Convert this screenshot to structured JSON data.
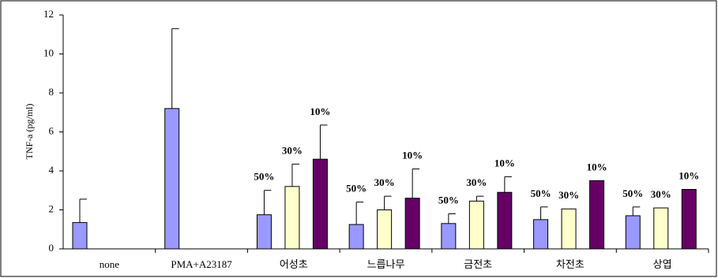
{
  "chart_data": {
    "type": "bar",
    "y_label": "TNF-a (pg/ml)",
    "categories": [
      "none",
      "PMA+A23187",
      "어성초",
      "느릅나무",
      "금전초",
      "차전초",
      "상엽"
    ],
    "series": [
      {
        "name": "50%",
        "color": "#9999ff",
        "values": [
          1.35,
          7.2,
          1.75,
          1.25,
          1.3,
          1.5,
          1.7
        ],
        "errors": [
          1.2,
          4.1,
          1.25,
          1.15,
          0.5,
          0.65,
          0.45
        ]
      },
      {
        "name": "30%",
        "color": "#ffffcc",
        "values": [
          null,
          null,
          3.2,
          2.0,
          2.45,
          2.05,
          2.1
        ],
        "errors": [
          null,
          null,
          1.15,
          0.7,
          0.25,
          null,
          null
        ]
      },
      {
        "name": "10%",
        "color": "#660066",
        "values": [
          null,
          null,
          4.6,
          2.6,
          2.9,
          3.5,
          3.05
        ],
        "errors": [
          null,
          null,
          1.75,
          1.5,
          0.8,
          null,
          null
        ]
      }
    ],
    "ylim": [
      0,
      12
    ],
    "yticks": [
      0,
      2,
      4,
      6,
      8,
      10,
      12
    ],
    "grid": false
  }
}
